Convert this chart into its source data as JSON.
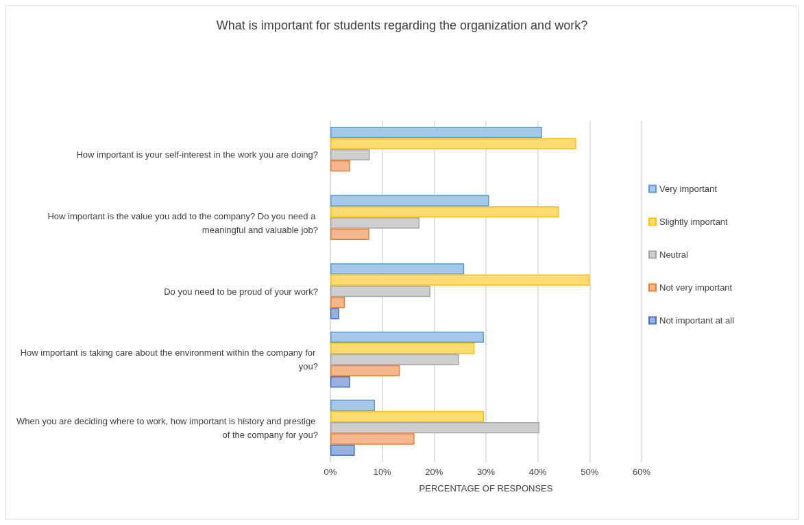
{
  "chart_data": {
    "type": "bar",
    "orientation": "horizontal",
    "title": "What is important for students regarding the organization and work?",
    "xlabel": "PERCENTAGE OF RESPONSES",
    "categories": [
      "How important is your self-interest in the work you are doing?",
      "How important is the value you add to the company? Do you need a meaningful and valuable job?",
      "Do you need to be proud of your work?",
      "How important is taking care about the environment within the company for you?",
      "When you are deciding where to work, how important is history and prestige of the company for you?"
    ],
    "series": [
      {
        "name": "Very important",
        "color": "#5b9bd5",
        "values": [
          40.8,
          30.6,
          25.8,
          29.6,
          8.6
        ]
      },
      {
        "name": "Slightly important",
        "color": "#ffc000",
        "values": [
          47.4,
          44.1,
          50,
          27.8,
          29.6
        ]
      },
      {
        "name": "Neutral",
        "color": "#a5a5a5",
        "values": [
          7.6,
          17.2,
          19.3,
          24.8,
          40.3
        ]
      },
      {
        "name": "Not very important",
        "color": "#ed7d31",
        "values": [
          3.8,
          7.5,
          2.8,
          13.4,
          16.2
        ]
      },
      {
        "name": "Not important at all",
        "color": "#4472c4",
        "values": [
          null,
          null,
          1.7,
          3.8,
          4.7
        ]
      }
    ],
    "xlim": [
      0,
      60
    ],
    "xticks": [
      {
        "value": 0,
        "label": "0%"
      },
      {
        "value": 10,
        "label": "10%"
      },
      {
        "value": 20,
        "label": "20%"
      },
      {
        "value": 30,
        "label": "30%"
      },
      {
        "value": 40,
        "label": "40%"
      },
      {
        "value": 50,
        "label": "50%"
      },
      {
        "value": 60,
        "label": "60%"
      }
    ],
    "grid": "x",
    "legend": "right"
  }
}
